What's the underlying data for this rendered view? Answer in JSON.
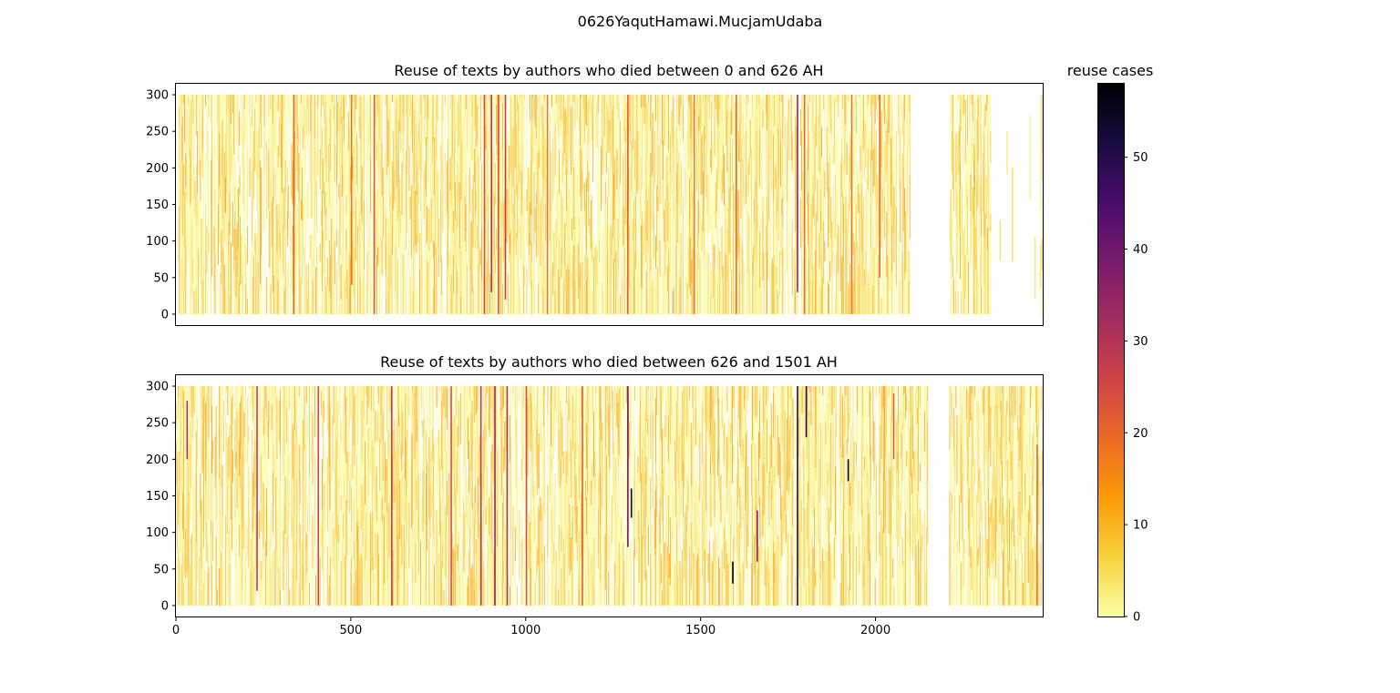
{
  "figure": {
    "suptitle": "0626YaqutHamawi.MucjamUdaba"
  },
  "colorbar": {
    "label": "reuse cases",
    "range": [
      0,
      58
    ],
    "ticks": [
      0,
      10,
      20,
      30,
      40,
      50
    ],
    "tick_labels": [
      "0",
      "10",
      "20",
      "30",
      "40",
      "50"
    ],
    "colormap": "inferno_r",
    "stops": [
      "#fcffa4",
      "#f7d13d",
      "#fb9b06",
      "#ed6925",
      "#cf4446",
      "#a52c60",
      "#781c6d",
      "#4a0c6b",
      "#1b0c41",
      "#000004"
    ]
  },
  "chart_data": [
    {
      "type": "heatmap",
      "title": "Reuse of texts by authors who died between 0 and 626 AH",
      "xlim": [
        0,
        2478
      ],
      "ylim": [
        -15,
        315
      ],
      "y_ticks": [
        0,
        50,
        100,
        150,
        200,
        250,
        300
      ],
      "y_tick_labels": [
        "0",
        "50",
        "100",
        "150",
        "200",
        "250",
        "300"
      ],
      "x_ticks_shown": false,
      "value_range": [
        0,
        58
      ],
      "data_x_range": [
        0,
        2478
      ],
      "data_y_range": [
        0,
        300
      ],
      "grid": false,
      "gaps": [
        [
          2100,
          2210
        ],
        [
          2330,
          2470
        ]
      ],
      "sparse_columns": [
        1005,
        1015,
        1050,
        1055,
        1060,
        2212,
        2215,
        2220,
        2240,
        2255,
        2280,
        2300,
        2320,
        2355,
        2375,
        2390,
        2440,
        2455,
        2470,
        2475
      ],
      "dense_ranges": [
        [
          0,
          480
        ],
        [
          480,
          1000
        ],
        [
          1000,
          2100
        ],
        [
          2205,
          2330
        ]
      ],
      "hot_columns": [
        {
          "x": 335,
          "y0": 0,
          "y1": 300,
          "value": 20
        },
        {
          "x": 500,
          "y0": 40,
          "y1": 300,
          "value": 18
        },
        {
          "x": 565,
          "y0": 0,
          "y1": 300,
          "value": 22
        },
        {
          "x": 880,
          "y0": 0,
          "y1": 300,
          "value": 24
        },
        {
          "x": 900,
          "y0": 30,
          "y1": 300,
          "value": 30
        },
        {
          "x": 920,
          "y0": 0,
          "y1": 300,
          "value": 24
        },
        {
          "x": 940,
          "y0": 20,
          "y1": 300,
          "value": 28
        },
        {
          "x": 1060,
          "y0": 0,
          "y1": 300,
          "value": 18
        },
        {
          "x": 1290,
          "y0": 0,
          "y1": 300,
          "value": 22
        },
        {
          "x": 1480,
          "y0": 0,
          "y1": 300,
          "value": 16
        },
        {
          "x": 1600,
          "y0": 0,
          "y1": 300,
          "value": 20
        },
        {
          "x": 1775,
          "y0": 30,
          "y1": 300,
          "value": 35
        },
        {
          "x": 1795,
          "y0": 0,
          "y1": 300,
          "value": 20
        },
        {
          "x": 1930,
          "y0": 0,
          "y1": 300,
          "value": 18
        },
        {
          "x": 2010,
          "y0": 50,
          "y1": 300,
          "value": 20
        }
      ]
    },
    {
      "type": "heatmap",
      "title": "Reuse of texts by authors who died between 626 and 1501 AH",
      "xlim": [
        0,
        2478
      ],
      "ylim": [
        -15,
        315
      ],
      "x_ticks": [
        0,
        500,
        1000,
        1500,
        2000
      ],
      "x_tick_labels": [
        "0",
        "500",
        "1000",
        "1500",
        "2000"
      ],
      "y_ticks": [
        0,
        50,
        100,
        150,
        200,
        250,
        300
      ],
      "y_tick_labels": [
        "0",
        "50",
        "100",
        "150",
        "200",
        "250",
        "300"
      ],
      "value_range": [
        0,
        58
      ],
      "data_x_range": [
        0,
        2478
      ],
      "data_y_range": [
        0,
        300
      ],
      "grid": false,
      "gaps": [
        [
          2150,
          2210
        ]
      ],
      "sparse_columns": [],
      "dense_ranges": [
        [
          0,
          1380
        ],
        [
          1380,
          2150
        ],
        [
          2210,
          2478
        ]
      ],
      "hot_columns": [
        {
          "x": 30,
          "y0": 200,
          "y1": 280,
          "value": 30
        },
        {
          "x": 230,
          "y0": 20,
          "y1": 300,
          "value": 28
        },
        {
          "x": 405,
          "y0": 0,
          "y1": 300,
          "value": 26
        },
        {
          "x": 615,
          "y0": 0,
          "y1": 300,
          "value": 28
        },
        {
          "x": 785,
          "y0": 0,
          "y1": 300,
          "value": 24
        },
        {
          "x": 870,
          "y0": 0,
          "y1": 300,
          "value": 28
        },
        {
          "x": 910,
          "y0": 0,
          "y1": 300,
          "value": 34
        },
        {
          "x": 945,
          "y0": 0,
          "y1": 300,
          "value": 30
        },
        {
          "x": 1000,
          "y0": 0,
          "y1": 300,
          "value": 24
        },
        {
          "x": 1160,
          "y0": 0,
          "y1": 300,
          "value": 22
        },
        {
          "x": 1290,
          "y0": 80,
          "y1": 300,
          "value": 40
        },
        {
          "x": 1300,
          "y0": 120,
          "y1": 160,
          "value": 55
        },
        {
          "x": 1590,
          "y0": 30,
          "y1": 60,
          "value": 58
        },
        {
          "x": 1660,
          "y0": 60,
          "y1": 130,
          "value": 38
        },
        {
          "x": 1775,
          "y0": 0,
          "y1": 300,
          "value": 52
        },
        {
          "x": 1800,
          "y0": 230,
          "y1": 300,
          "value": 50
        },
        {
          "x": 1920,
          "y0": 170,
          "y1": 200,
          "value": 55
        },
        {
          "x": 2050,
          "y0": 200,
          "y1": 290,
          "value": 22
        },
        {
          "x": 2460,
          "y0": 0,
          "y1": 220,
          "value": 18
        }
      ]
    }
  ]
}
